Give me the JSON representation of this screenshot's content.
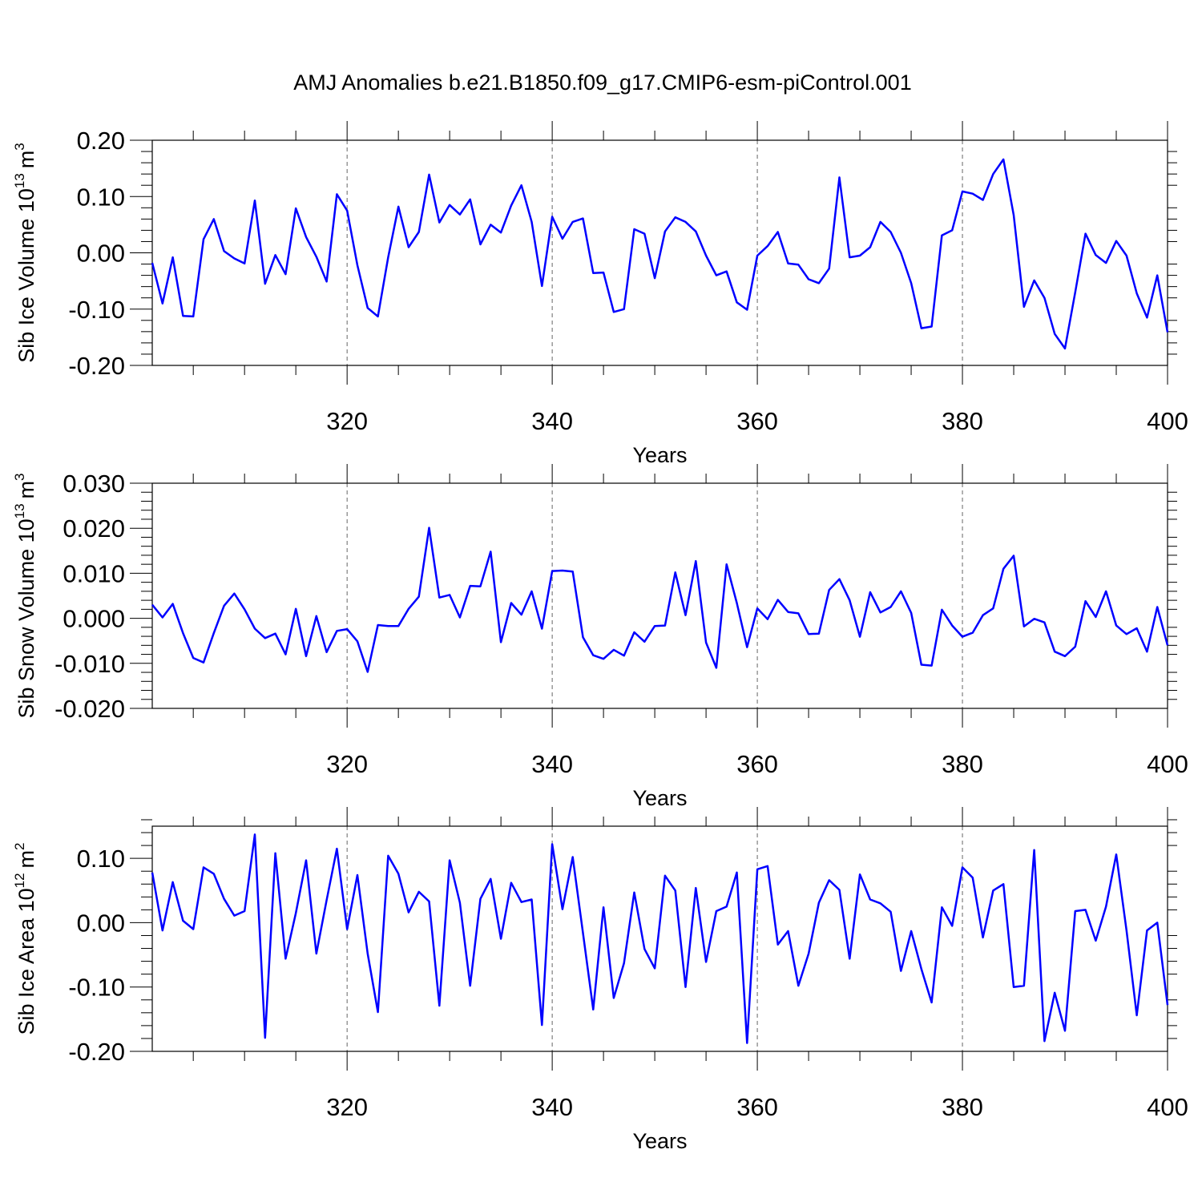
{
  "figure_title": "AMJ Anomalies b.e21.B1850.f09_g17.CMIP6-esm-piControl.001",
  "line_color": "#0000ff",
  "chart_data": [
    {
      "type": "line",
      "ylabel_main": "Sib Ice Volume 10",
      "ylabel_exp": "13",
      "ylabel_unit": "m",
      "ylabel_unit_exp": "3",
      "xlabel": "Years",
      "xlim": [
        301,
        400
      ],
      "ylim": [
        -0.2,
        0.2
      ],
      "x_ticks": [
        320,
        340,
        360,
        380,
        400
      ],
      "x_tick_labels": [
        "320",
        "340",
        "360",
        "380",
        "400"
      ],
      "y_ticks": [
        -0.2,
        -0.1,
        0.0,
        0.1,
        0.2
      ],
      "y_tick_labels": [
        "-0.20",
        "-0.10",
        "0.00",
        "0.10",
        "0.20"
      ],
      "y_minor_step": 0.02,
      "grid": "dashed vertical at labeled x ticks",
      "x_start": 301,
      "values": [
        -0.018,
        -0.09,
        -0.008,
        -0.112,
        -0.113,
        0.024,
        0.06,
        0.003,
        -0.01,
        -0.019,
        0.093,
        -0.055,
        -0.004,
        -0.038,
        0.079,
        0.028,
        -0.007,
        -0.051,
        0.104,
        0.075,
        -0.022,
        -0.098,
        -0.113,
        -0.008,
        0.082,
        0.01,
        0.037,
        0.139,
        0.054,
        0.085,
        0.068,
        0.095,
        0.015,
        0.05,
        0.036,
        0.084,
        0.12,
        0.055,
        -0.059,
        0.064,
        0.025,
        0.055,
        0.061,
        -0.036,
        -0.035,
        -0.105,
        -0.1,
        0.042,
        0.034,
        -0.045,
        0.038,
        0.063,
        0.055,
        0.038,
        -0.005,
        -0.04,
        -0.033,
        -0.088,
        -0.101,
        -0.005,
        0.012,
        0.037,
        -0.019,
        -0.021,
        -0.047,
        -0.054,
        -0.028,
        0.134,
        -0.008,
        -0.005,
        0.01,
        0.055,
        0.037,
        0.0,
        -0.054,
        -0.134,
        -0.131,
        0.031,
        0.04,
        0.109,
        0.105,
        0.094,
        0.14,
        0.166,
        0.067,
        -0.096,
        -0.049,
        -0.08,
        -0.144,
        -0.17,
        -0.07,
        0.034,
        -0.004,
        -0.018,
        0.021,
        -0.005,
        -0.072,
        -0.115,
        -0.04,
        -0.141
      ]
    },
    {
      "type": "line",
      "ylabel_main": "Sib Snow Volume 10",
      "ylabel_exp": "13",
      "ylabel_unit": "m",
      "ylabel_unit_exp": "3",
      "xlabel": "Years",
      "xlim": [
        301,
        400
      ],
      "ylim": [
        -0.02,
        0.03
      ],
      "x_ticks": [
        320,
        340,
        360,
        380,
        400
      ],
      "x_tick_labels": [
        "320",
        "340",
        "360",
        "380",
        "400"
      ],
      "y_ticks": [
        -0.02,
        -0.01,
        0.0,
        0.01,
        0.02,
        0.03
      ],
      "y_tick_labels": [
        "-0.020",
        "-0.010",
        "0.000",
        "0.010",
        "0.020",
        "0.030"
      ],
      "y_minor_step": 0.002,
      "grid": "dashed vertical at labeled x ticks",
      "x_start": 301,
      "values": [
        0.003,
        0.0002,
        0.0032,
        -0.0033,
        -0.0088,
        -0.0098,
        -0.0033,
        0.0028,
        0.0055,
        0.002,
        -0.0023,
        -0.0044,
        -0.0034,
        -0.008,
        0.0021,
        -0.0084,
        0.0005,
        -0.0075,
        -0.0028,
        -0.0024,
        -0.0051,
        -0.0119,
        -0.0015,
        -0.0017,
        -0.0017,
        0.0021,
        0.0048,
        0.0201,
        0.0046,
        0.0052,
        0.0002,
        0.0072,
        0.0071,
        0.0148,
        -0.0053,
        0.0034,
        0.0008,
        0.006,
        -0.0023,
        0.0105,
        0.0106,
        0.0104,
        -0.0042,
        -0.0082,
        -0.009,
        -0.007,
        -0.0083,
        -0.0031,
        -0.0052,
        -0.0017,
        -0.0016,
        0.0102,
        0.0007,
        0.0127,
        -0.0054,
        -0.011,
        0.012,
        0.0034,
        -0.0064,
        0.0022,
        -0.0002,
        0.0041,
        0.0014,
        0.0011,
        -0.0035,
        -0.0034,
        0.0063,
        0.0087,
        0.004,
        -0.0041,
        0.0058,
        0.0013,
        0.0025,
        0.006,
        0.0012,
        -0.0103,
        -0.0105,
        0.0019,
        -0.0016,
        -0.0041,
        -0.0032,
        0.0007,
        0.0022,
        0.011,
        0.0139,
        -0.0018,
        -0.0001,
        -0.0009,
        -0.0074,
        -0.0084,
        -0.0063,
        0.0038,
        0.0003,
        0.006,
        -0.0016,
        -0.0035,
        -0.0022,
        -0.0074,
        0.0025,
        -0.006
      ]
    },
    {
      "type": "line",
      "ylabel_main": "Sib Ice Area 10",
      "ylabel_exp": "12",
      "ylabel_unit": "m",
      "ylabel_unit_exp": "2",
      "xlabel": "Years",
      "xlim": [
        301,
        400
      ],
      "ylim": [
        -0.2,
        0.15
      ],
      "x_ticks": [
        320,
        340,
        360,
        380,
        400
      ],
      "x_tick_labels": [
        "320",
        "340",
        "360",
        "380",
        "400"
      ],
      "y_ticks": [
        -0.2,
        -0.1,
        0.0,
        0.1
      ],
      "y_tick_labels": [
        "-0.20",
        "-0.10",
        "0.00",
        "0.10"
      ],
      "y_minor_step": 0.02,
      "grid": "dashed vertical at labeled x ticks",
      "x_start": 301,
      "values": [
        0.078,
        -0.012,
        0.063,
        0.003,
        -0.01,
        0.086,
        0.076,
        0.037,
        0.011,
        0.018,
        0.137,
        -0.179,
        0.108,
        -0.056,
        0.015,
        0.097,
        -0.048,
        0.035,
        0.115,
        -0.01,
        0.074,
        -0.048,
        -0.139,
        0.104,
        0.076,
        0.016,
        0.048,
        0.033,
        -0.129,
        0.097,
        0.031,
        -0.098,
        0.037,
        0.068,
        -0.025,
        0.062,
        0.032,
        0.036,
        -0.159,
        0.122,
        0.021,
        0.102,
        -0.016,
        -0.135,
        0.024,
        -0.117,
        -0.063,
        0.047,
        -0.041,
        -0.071,
        0.073,
        0.05,
        -0.1,
        0.054,
        -0.061,
        0.018,
        0.025,
        0.078,
        -0.187,
        0.083,
        0.088,
        -0.034,
        -0.013,
        -0.098,
        -0.048,
        0.031,
        0.066,
        0.051,
        -0.056,
        0.075,
        0.036,
        0.03,
        0.017,
        -0.075,
        -0.013,
        -0.072,
        -0.124,
        0.024,
        -0.005,
        0.086,
        0.07,
        -0.023,
        0.05,
        0.06,
        -0.1,
        -0.098,
        0.113,
        -0.184,
        -0.109,
        -0.168,
        0.018,
        0.02,
        -0.028,
        0.025,
        0.106,
        -0.012,
        -0.144,
        -0.012,
        0.0,
        -0.128
      ]
    }
  ]
}
